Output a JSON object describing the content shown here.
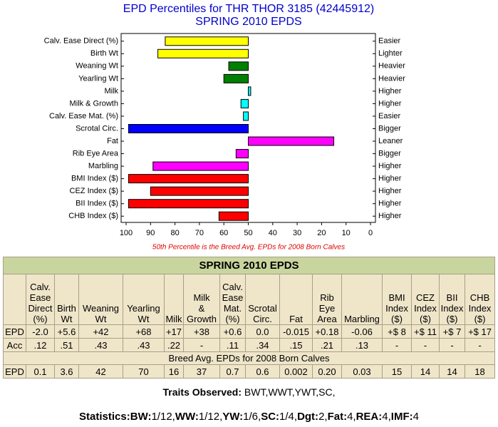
{
  "chart_data": {
    "type": "bar",
    "orientation": "horizontal",
    "title": "EPD Percentiles for THR THOR 3185 (42445912)",
    "subtitle": "SPRING 2010 EPDS",
    "note": "50th Percentile is the Breed Avg. EPDs for 2008 Born Calves",
    "categories": [
      "Calv. Ease Direct (%)",
      "Birth Wt",
      "Weaning Wt",
      "Yearling Wt",
      "Milk",
      "Milk & Growth",
      "Calv. Ease Mat. (%)",
      "Scrotal Circ.",
      "Fat",
      "Rib Eye Area",
      "Marbling",
      "BMI Index ($)",
      "CEZ Index ($)",
      "BII Index ($)",
      "CHB Index ($)"
    ],
    "right_labels": [
      "Easier",
      "Lighter",
      "Heavier",
      "Heavier",
      "Higher",
      "Higher",
      "Easier",
      "Bigger",
      "Leaner",
      "Bigger",
      "Higher",
      "Higher",
      "Higher",
      "Higher",
      "Higher"
    ],
    "values": [
      84,
      87,
      58,
      60,
      49,
      53,
      52,
      99,
      15,
      55,
      89,
      99,
      90,
      99,
      62
    ],
    "colors": [
      "#ffff00",
      "#ffff00",
      "#008000",
      "#008000",
      "#00ffff",
      "#00ffff",
      "#00ffff",
      "#0000ff",
      "#ff00ff",
      "#ff00ff",
      "#ff00ff",
      "#ff0000",
      "#ff0000",
      "#ff0000",
      "#ff0000"
    ],
    "base": 50,
    "xlim": [
      100,
      0
    ],
    "xticks": [
      100,
      90,
      80,
      70,
      60,
      50,
      40,
      30,
      20,
      10,
      0
    ]
  },
  "table": {
    "title": "SPRING 2010 EPDS",
    "headers": [
      "Calv.\nEase\nDirect\n(%)",
      "Birth\nWt",
      "Weaning\nWt",
      "Yearling\nWt",
      "Milk",
      "Milk\n&\nGrowth",
      "Calv.\nEase\nMat.\n(%)",
      "Scrotal\nCirc.",
      "Fat",
      "Rib\nEye\nArea",
      "Marbling",
      "BMI\nIndex\n($)",
      "CEZ\nIndex\n($)",
      "BII\nIndex\n($)",
      "CHB\nIndex\n($)"
    ],
    "rows": [
      [
        "EPD",
        "-2.0",
        "+5.6",
        "+42",
        "+68",
        "+17",
        "+38",
        "+0.6",
        "0.0",
        "-0.015",
        "+0.18",
        "-0.06",
        "+$ 8",
        "+$ 11",
        "+$ 7",
        "+$ 17"
      ],
      [
        "Acc",
        ".12",
        ".51",
        ".43",
        ".43",
        ".22",
        "-",
        ".11",
        ".34",
        ".15",
        ".21",
        ".13",
        "-",
        "-",
        "-",
        "-"
      ]
    ],
    "breed_title": "Breed Avg. EPDs for 2008 Born Calves",
    "breed_rows": [
      [
        "EPD",
        "0.1",
        "3.6",
        "42",
        "70",
        "16",
        "37",
        "0.7",
        "0.6",
        "0.002",
        "0.20",
        "0.03",
        "15",
        "14",
        "14",
        "18"
      ]
    ]
  },
  "footer": {
    "traits_label": "Traits Observed:",
    "traits": "BWT,WWT,YWT,SC,",
    "statistics_label": "Statistics:",
    "statistics": [
      {
        "key": "BW:",
        "value": "1/12,"
      },
      {
        "key": "WW:",
        "value": "1/12,"
      },
      {
        "key": "YW:",
        "value": "1/6,"
      },
      {
        "key": "SC:",
        "value": "1/4,"
      },
      {
        "key": "Dgt:",
        "value": "2,"
      },
      {
        "key": "Fat:",
        "value": "4,"
      },
      {
        "key": "REA:",
        "value": "4,"
      },
      {
        "key": "IMF:",
        "value": "4"
      }
    ]
  }
}
